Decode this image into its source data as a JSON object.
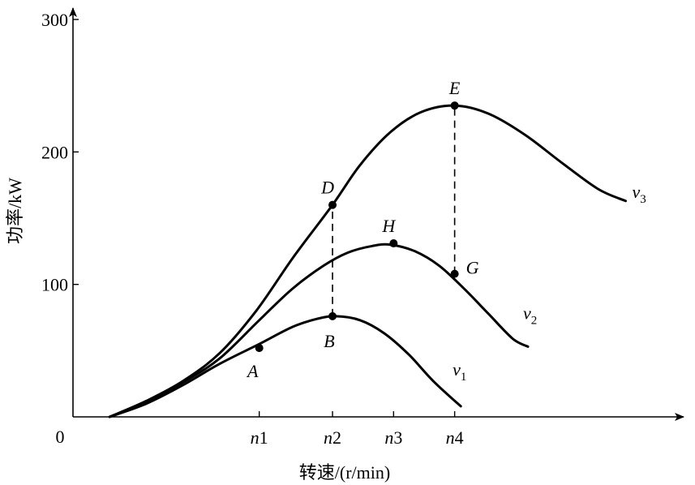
{
  "chart_data": {
    "type": "line",
    "title": "",
    "xlabel": "转速/(r/min)",
    "ylabel": "功率/kW",
    "origin_label": "0",
    "ylim": [
      0,
      300
    ],
    "yticks": [
      {
        "value": 100,
        "label": "100"
      },
      {
        "value": 200,
        "label": "200"
      },
      {
        "value": 300,
        "label": "300"
      }
    ],
    "xticks": [
      {
        "value": 0.305,
        "label": "n1"
      },
      {
        "value": 0.425,
        "label": "n2"
      },
      {
        "value": 0.525,
        "label": "n3"
      },
      {
        "value": 0.625,
        "label": "n4"
      }
    ],
    "grid": false,
    "series": [
      {
        "name": "v1",
        "label_main": "v",
        "label_sub": "1",
        "x": [
          0.06,
          0.12,
          0.18,
          0.24,
          0.305,
          0.36,
          0.4,
          0.43,
          0.47,
          0.51,
          0.55,
          0.59,
          0.635
        ],
        "y": [
          0,
          10,
          24,
          40,
          55,
          68,
          74,
          76,
          73,
          63,
          47,
          27,
          8
        ]
      },
      {
        "name": "v2",
        "label_main": "v",
        "label_sub": "2",
        "x": [
          0.06,
          0.12,
          0.18,
          0.24,
          0.305,
          0.36,
          0.41,
          0.45,
          0.49,
          0.52,
          0.56,
          0.6,
          0.64,
          0.68,
          0.72,
          0.745
        ],
        "y": [
          0,
          11,
          26,
          44,
          73,
          97,
          114,
          124,
          129,
          130,
          125,
          114,
          97,
          78,
          59,
          53
        ]
      },
      {
        "name": "v3",
        "label_main": "v",
        "label_sub": "3",
        "x": [
          0.06,
          0.12,
          0.18,
          0.24,
          0.3,
          0.36,
          0.425,
          0.47,
          0.52,
          0.57,
          0.625,
          0.68,
          0.74,
          0.8,
          0.86,
          0.905
        ],
        "y": [
          0,
          12,
          27,
          48,
          80,
          120,
          160,
          190,
          215,
          230,
          235,
          229,
          213,
          192,
          172,
          163
        ]
      }
    ],
    "points": [
      {
        "label": "A",
        "x": 0.305,
        "y": 52,
        "anchor": "below-left"
      },
      {
        "label": "B",
        "x": 0.425,
        "y": 76,
        "anchor": "below"
      },
      {
        "label": "D",
        "x": 0.425,
        "y": 160,
        "anchor": "above-left"
      },
      {
        "label": "H",
        "x": 0.525,
        "y": 131,
        "anchor": "above-left"
      },
      {
        "label": "E",
        "x": 0.625,
        "y": 235,
        "anchor": "above"
      },
      {
        "label": "G",
        "x": 0.625,
        "y": 108,
        "anchor": "right"
      }
    ],
    "dashed_guides": [
      {
        "x": 0.425,
        "y_from": 76,
        "y_to": 160
      },
      {
        "x": 0.625,
        "y_from": 108,
        "y_to": 235
      }
    ]
  }
}
